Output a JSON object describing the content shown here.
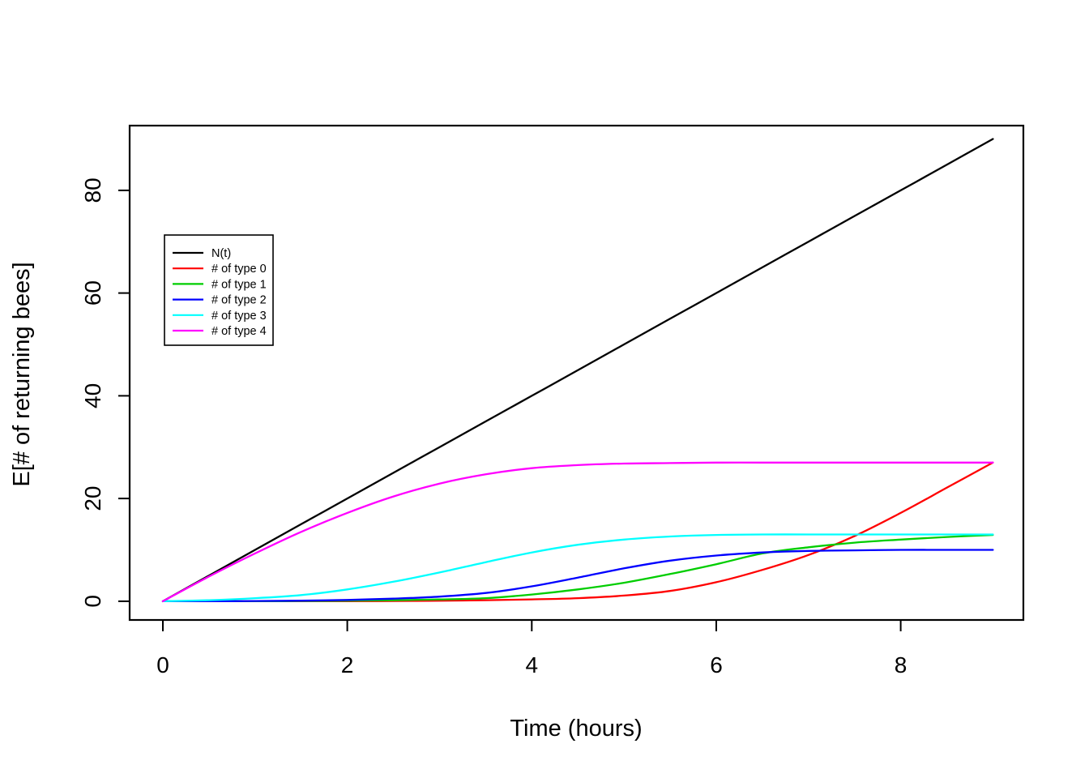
{
  "figure": {
    "background_color": "#ffffff",
    "frame_color": "#000000"
  },
  "chart_data": {
    "type": "line",
    "title": "",
    "xlabel": "Time (hours)",
    "ylabel": "E[# of returning bees]",
    "x_ticks": [
      0,
      2,
      4,
      6,
      8
    ],
    "x_tick_labels": [
      "0",
      "2",
      "4",
      "6",
      "8"
    ],
    "y_ticks": [
      0,
      20,
      40,
      60,
      80
    ],
    "y_tick_labels": [
      "0",
      "20",
      "40",
      "60",
      "80"
    ],
    "xlim": [
      -0.36,
      9.33
    ],
    "ylim": [
      -3.65,
      92.6
    ],
    "grid": false,
    "legend_position": "upper-left-inside",
    "x": [
      0,
      0.5,
      1,
      1.5,
      2,
      2.5,
      3,
      3.5,
      4,
      4.5,
      5,
      5.5,
      6,
      6.5,
      7,
      7.5,
      8,
      8.5,
      9
    ],
    "series": [
      {
        "name": "N(t)",
        "color": "#000000",
        "values": [
          0,
          5,
          10,
          15,
          20,
          25,
          30,
          35,
          40,
          45,
          50,
          55,
          60,
          65,
          70,
          75,
          80,
          85,
          90
        ]
      },
      {
        "name": "# of type 0",
        "color": "#FF0000",
        "values": [
          0,
          0,
          0,
          0,
          0,
          0.05,
          0.1,
          0.2,
          0.35,
          0.6,
          1.1,
          2,
          3.7,
          6.1,
          9,
          12.7,
          17.2,
          22.1,
          27
        ]
      },
      {
        "name": "# of type 1",
        "color": "#00CD00",
        "values": [
          0,
          0,
          0,
          0.05,
          0.1,
          0.2,
          0.35,
          0.6,
          1.3,
          2.3,
          3.6,
          5.3,
          7.2,
          9.3,
          10.5,
          11.4,
          12,
          12.5,
          12.9
        ]
      },
      {
        "name": "# of type 2",
        "color": "#0000FF",
        "values": [
          0,
          0,
          0.05,
          0.1,
          0.25,
          0.5,
          0.9,
          1.6,
          2.9,
          4.6,
          6.4,
          7.9,
          8.9,
          9.5,
          9.8,
          9.9,
          10,
          10,
          10
        ]
      },
      {
        "name": "# of type 3",
        "color": "#00FFFF",
        "values": [
          0,
          0.2,
          0.6,
          1.2,
          2.3,
          3.8,
          5.6,
          7.6,
          9.5,
          11,
          12,
          12.6,
          12.9,
          13,
          13,
          13,
          13,
          13,
          13
        ]
      },
      {
        "name": "# of type 4",
        "color": "#FF00FF",
        "values": [
          0,
          4.8,
          9.3,
          13.5,
          17.2,
          20.4,
          22.9,
          24.7,
          25.9,
          26.5,
          26.8,
          26.9,
          27,
          27,
          27,
          27,
          27,
          27,
          27
        ]
      }
    ]
  }
}
